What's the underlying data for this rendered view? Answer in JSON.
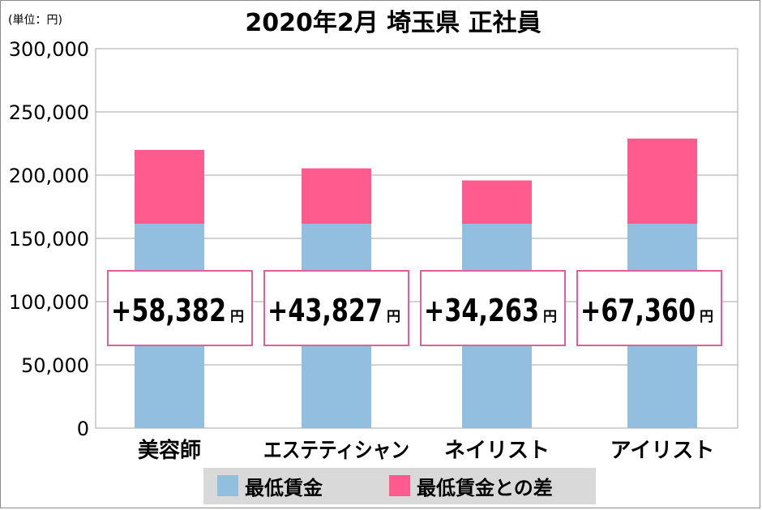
{
  "chart_data": {
    "type": "bar",
    "stacked": true,
    "title": "2020年2月 埼玉県 正社員",
    "unit_note": "(単位：円)",
    "categories": [
      "美容師",
      "エステティシャン",
      "ネイリスト",
      "アイリスト"
    ],
    "series": [
      {
        "name": "最低賃金",
        "color": "#92bfe0",
        "values": [
          161560,
          161560,
          161560,
          161560
        ]
      },
      {
        "name": "最低賃金との差",
        "color": "#ff5b8f",
        "values": [
          58382,
          43827,
          34263,
          67360
        ]
      }
    ],
    "difference_labels": [
      "+58,382",
      "+43,827",
      "+34,263",
      "+67,360"
    ],
    "difference_unit": "円",
    "ylim": [
      0,
      300000
    ],
    "yticks": [
      0,
      50000,
      100000,
      150000,
      200000,
      250000,
      300000
    ],
    "ytick_labels": [
      "0",
      "50,000",
      "100,000",
      "150,000",
      "200,000",
      "250,000",
      "300,000"
    ],
    "grid": true,
    "legend_position": "bottom",
    "label_box_border_color": "#e0609a"
  }
}
